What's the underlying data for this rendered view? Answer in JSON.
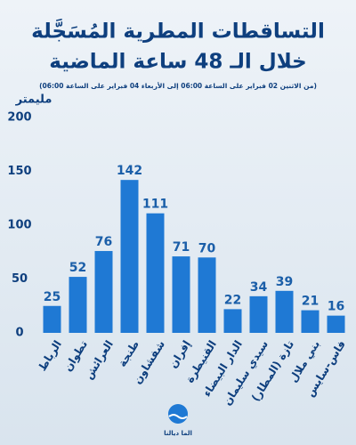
{
  "chart_data": {
    "type": "bar",
    "title": "التساقطات المطرية المُسَجَّلة",
    "title_line2": "خلال الـ 48 ساعة الماضية",
    "subtitle": "(من الاثنين 02 فبراير على الساعة 06:00 إلى الأربعاء 04 فبراير على الساعة 06:00)",
    "y_label": "مليمتر",
    "categories": [
      "الرباط",
      "تطوان",
      "العرائش",
      "طنجة",
      "شفشاون",
      "إفران",
      "القنيطرة",
      "الدار البيضاء",
      "سيدي سليمان",
      "تازة (المطار)",
      "بني ملال",
      "فاس-سايس"
    ],
    "values": [
      25,
      52,
      76,
      142,
      111,
      71,
      70,
      22,
      34,
      39,
      21,
      16
    ],
    "color": "#1f79d4",
    "ylim": [
      0,
      200
    ],
    "yticks": [
      0,
      50,
      100,
      150,
      200
    ],
    "grid": false
  },
  "logo": {
    "text": "الما ديالنا"
  }
}
